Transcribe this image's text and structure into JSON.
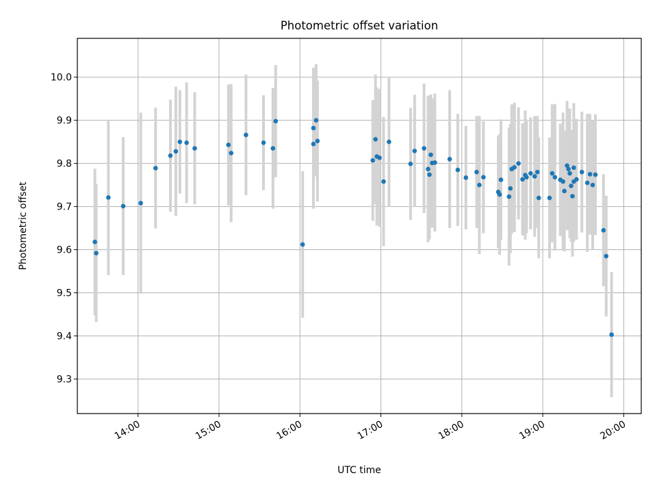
{
  "chart_data": {
    "type": "scatter",
    "title": "Photometric offset variation",
    "xlabel": "UTC time",
    "ylabel": "Photometric offset",
    "xlim": [
      "13:15",
      "20:13"
    ],
    "ylim": [
      9.22,
      10.09
    ],
    "xticks": [
      "14:00",
      "15:00",
      "16:00",
      "17:00",
      "18:00",
      "19:00",
      "20:00"
    ],
    "yticks": [
      "9.3",
      "9.4",
      "9.5",
      "9.6",
      "9.7",
      "9.8",
      "9.9",
      "10.0"
    ],
    "grid": true,
    "colors": {
      "points": "#1f77b4",
      "errorbars": "#d3d3d3",
      "grid": "#b0b0b0"
    },
    "series": [
      {
        "x": [
          "13:28",
          "13:29",
          "13:38",
          "13:49",
          "14:02",
          "14:13",
          "14:24",
          "14:28",
          "14:31",
          "14:36",
          "14:42",
          "15:07",
          "15:09",
          "15:20",
          "15:33",
          "15:40",
          "15:42",
          "16:02",
          "16:10",
          "16:10",
          "16:12",
          "16:13",
          "16:54",
          "16:56",
          "16:57",
          "16:59",
          "17:02",
          "17:06",
          "17:22",
          "17:25",
          "17:32",
          "17:35",
          "17:36",
          "17:37",
          "17:38",
          "17:40",
          "17:51",
          "17:57",
          "18:03",
          "18:11",
          "18:13",
          "18:16",
          "18:27",
          "18:28",
          "18:29",
          "18:35",
          "18:36",
          "18:37",
          "18:39",
          "18:42",
          "18:45",
          "18:47",
          "18:48",
          "18:51",
          "18:54",
          "18:56",
          "18:57",
          "19:05",
          "19:07",
          "19:09",
          "19:13",
          "19:15",
          "19:16",
          "19:18",
          "19:19",
          "19:20",
          "19:21",
          "19:22",
          "19:23",
          "19:23",
          "19:25",
          "19:29",
          "19:33",
          "19:35",
          "19:37",
          "19:39",
          "19:45",
          "19:47"
        ],
        "y": [
          9.618,
          9.592,
          9.721,
          9.701,
          9.708,
          9.789,
          9.818,
          9.828,
          9.85,
          9.848,
          9.835,
          9.843,
          9.824,
          9.866,
          9.848,
          9.835,
          9.898,
          9.612,
          9.845,
          9.882,
          9.9,
          9.852,
          9.807,
          9.856,
          9.816,
          9.813,
          9.758,
          9.85,
          9.799,
          9.829,
          9.835,
          9.787,
          9.774,
          9.82,
          9.801,
          9.802,
          9.81,
          9.785,
          9.767,
          9.78,
          9.75,
          9.768,
          9.734,
          9.728,
          9.762,
          9.723,
          9.742,
          9.787,
          9.791,
          9.8,
          9.763,
          9.773,
          9.768,
          9.777,
          9.77,
          9.78,
          9.72,
          9.72,
          9.777,
          9.768,
          9.762,
          9.758,
          9.736,
          9.795,
          9.787,
          9.777,
          9.748,
          9.724,
          9.758,
          9.79,
          9.763,
          9.78,
          9.755,
          9.775,
          9.75,
          9.774,
          9.645,
          9.585
        ],
        "err": [
          0.17,
          0.16,
          0.18,
          0.16,
          0.21,
          0.14,
          0.13,
          0.15,
          0.12,
          0.14,
          0.13,
          0.14,
          0.16,
          0.14,
          0.11,
          0.14,
          0.13,
          0.17,
          0.15,
          0.14,
          0.13,
          0.14,
          0.14,
          0.15,
          0.16,
          0.16,
          0.15,
          0.15,
          0.13,
          0.13,
          0.15,
          0.17,
          0.15,
          0.14,
          0.15,
          0.16,
          0.16,
          0.13,
          0.12,
          0.13,
          0.16,
          0.13,
          0.13,
          0.14,
          0.14,
          0.16,
          0.15,
          0.15,
          0.15,
          0.13,
          0.13,
          0.15,
          0.13,
          0.13,
          0.14,
          0.13,
          0.14,
          0.14,
          0.16,
          0.17,
          0.13,
          0.16,
          0.14,
          0.15,
          0.14,
          0.15,
          0.13,
          0.14,
          0.14,
          0.15,
          0.14,
          0.14,
          0.16,
          0.14,
          0.15,
          0.14,
          0.13,
          0.14
        ]
      },
      {
        "x": [
          "19:51"
        ],
        "y": [
          9.403
        ],
        "err": [
          0.145
        ]
      }
    ]
  }
}
